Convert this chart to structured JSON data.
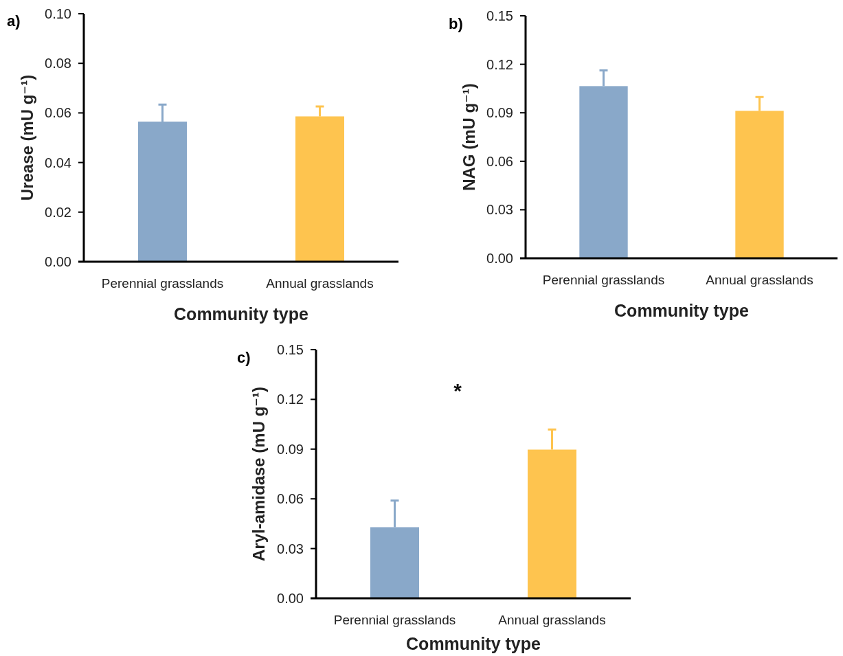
{
  "chart_data": [
    {
      "type": "bar",
      "title": "a)",
      "xlabel": "Community type",
      "ylabel": "Urease (mU g⁻¹)",
      "categories": [
        "Perennial grasslands",
        "Annual grasslands"
      ],
      "values": [
        0.0565,
        0.0586
      ],
      "colors": [
        "#89a8c9",
        "#fec44f"
      ],
      "errors": [
        [
          0.0565,
          0.0634
        ],
        [
          0.0586,
          0.0626
        ]
      ],
      "ylim": [
        0,
        0.1
      ],
      "yticks": [
        {
          "value": 0,
          "label": "0.00"
        },
        {
          "value": 0.02,
          "label": "0.02"
        },
        {
          "value": 0.04,
          "label": "0.04"
        },
        {
          "value": 0.06,
          "label": "0.06"
        },
        {
          "value": 0.08,
          "label": "0.08"
        },
        {
          "value": 0.1,
          "label": "0.10"
        }
      ]
    },
    {
      "type": "bar",
      "title": "b)",
      "xlabel": "Community type",
      "ylabel": "NAG (mU g⁻¹)",
      "categories": [
        "Perennial grasslands",
        "Annual grasslands"
      ],
      "values": [
        0.1065,
        0.0912
      ],
      "colors": [
        "#89a8c9",
        "#fec44f"
      ],
      "errors": [
        [
          0.1065,
          0.1162
        ],
        [
          0.0912,
          0.0998
        ]
      ],
      "ylim": [
        0,
        0.15
      ],
      "yticks": [
        {
          "value": 0,
          "label": "0.00"
        },
        {
          "value": 0.03,
          "label": "0.03"
        },
        {
          "value": 0.06,
          "label": "0.06"
        },
        {
          "value": 0.09,
          "label": "0.09"
        },
        {
          "value": 0.12,
          "label": "0.12"
        },
        {
          "value": 0.15,
          "label": "0.15"
        }
      ]
    },
    {
      "type": "bar",
      "title": "c)",
      "xlabel": "Community type",
      "ylabel": "Aryl-amidase (mU g⁻¹)",
      "categories": [
        "Perennial grasslands",
        "Annual grasslands"
      ],
      "values": [
        0.0429,
        0.0897
      ],
      "colors": [
        "#89a8c9",
        "#fec44f"
      ],
      "errors": [
        [
          0.0429,
          0.0589
        ],
        [
          0.0897,
          0.1018
        ]
      ],
      "ylim": [
        0,
        0.15
      ],
      "yticks": [
        {
          "value": 0,
          "label": "0.00"
        },
        {
          "value": 0.03,
          "label": "0.03"
        },
        {
          "value": 0.06,
          "label": "0.06"
        },
        {
          "value": 0.09,
          "label": "0.09"
        },
        {
          "value": 0.12,
          "label": "0.12"
        },
        {
          "value": 0.15,
          "label": "0.15"
        }
      ],
      "annotations": [
        "*"
      ]
    }
  ]
}
